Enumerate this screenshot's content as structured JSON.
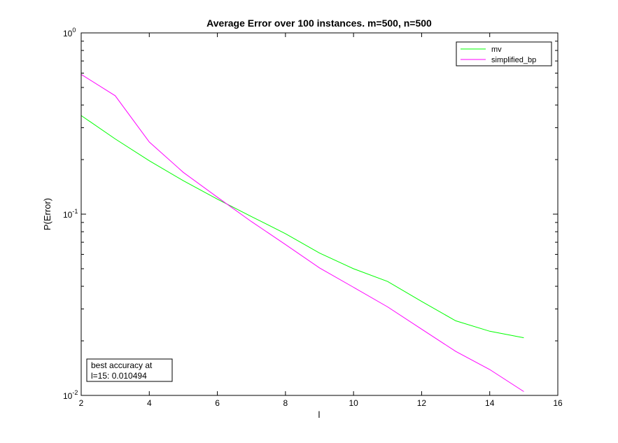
{
  "chart_data": {
    "type": "line",
    "title": "Average Error over 100 instances. m=500, n=500",
    "xlabel": "l",
    "ylabel": "P(Error)",
    "xlim": [
      2,
      16
    ],
    "ylim": [
      0.01,
      1
    ],
    "yscale": "log",
    "grid": false,
    "legend_position": "top-right",
    "x_ticks": [
      2,
      4,
      6,
      8,
      10,
      12,
      14,
      16
    ],
    "x_tick_labels": [
      "2",
      "4",
      "6",
      "8",
      "10",
      "12",
      "14",
      "16"
    ],
    "y_ticks": [
      {
        "value": 1,
        "base": "10",
        "exp": "0"
      },
      {
        "value": 0.1,
        "base": "10",
        "exp": "-1"
      },
      {
        "value": 0.01,
        "base": "10",
        "exp": "-2"
      }
    ],
    "x": [
      2,
      3,
      4,
      5,
      6,
      7,
      8,
      9,
      10,
      11,
      12,
      13,
      14,
      15
    ],
    "series": [
      {
        "name": "mv",
        "color": "#00ff00",
        "values": [
          0.35,
          0.26,
          0.197,
          0.153,
          0.121,
          0.097,
          0.078,
          0.061,
          0.05,
          0.0425,
          0.033,
          0.0258,
          0.0226,
          0.0208
        ]
      },
      {
        "name": "simplified_bp",
        "color": "#ff00ff",
        "values": [
          0.59,
          0.45,
          0.25,
          0.17,
          0.124,
          0.091,
          0.068,
          0.0505,
          0.0395,
          0.0308,
          0.0232,
          0.0175,
          0.0139,
          0.0105
        ]
      }
    ],
    "annotation": {
      "line1": "best accuracy at",
      "line2": "l=15: 0.010494"
    }
  }
}
